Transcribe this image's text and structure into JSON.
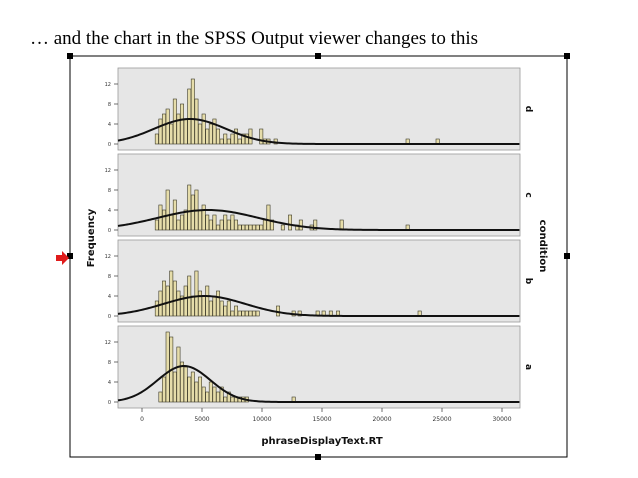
{
  "slide": {
    "caption": "… and the chart in the SPSS Output viewer changes to this"
  },
  "colors": {
    "panel_bg": "#e6e6e6",
    "bar_fill": "#e6ddaa",
    "bar_stroke": "#3d3a28",
    "curve": "#111111",
    "arrow": "#e01b1b",
    "handle": "#000000"
  },
  "chart_data": {
    "type": "bar",
    "subtype": "histogram-panel",
    "xlabel": "phraseDisplayText.RT",
    "ylabel": "Frequency",
    "panel_title": "condition",
    "x_ticks": [
      "0",
      "5000",
      "10000",
      "15000",
      "20000",
      "25000",
      "30000"
    ],
    "x_tick_values": [
      0,
      5000,
      10000,
      15000,
      20000,
      25000,
      30000
    ],
    "xlim": [
      -2000,
      31500
    ],
    "y_ticks": [
      0,
      4,
      8,
      12
    ],
    "ylim": [
      0,
      14
    ],
    "bin_width": 300,
    "panels": [
      {
        "label": "d",
        "normal_curve": {
          "mean": 4000,
          "sd": 3000,
          "peak": 5
        },
        "bins": [
          {
            "x": 1100,
            "y": 2
          },
          {
            "x": 1400,
            "y": 5
          },
          {
            "x": 1700,
            "y": 6
          },
          {
            "x": 2000,
            "y": 7
          },
          {
            "x": 2300,
            "y": 4
          },
          {
            "x": 2600,
            "y": 9
          },
          {
            "x": 2900,
            "y": 6
          },
          {
            "x": 3200,
            "y": 8
          },
          {
            "x": 3500,
            "y": 5
          },
          {
            "x": 3800,
            "y": 11
          },
          {
            "x": 4100,
            "y": 13
          },
          {
            "x": 4400,
            "y": 9
          },
          {
            "x": 4700,
            "y": 4
          },
          {
            "x": 5000,
            "y": 6
          },
          {
            "x": 5300,
            "y": 3
          },
          {
            "x": 5600,
            "y": 4
          },
          {
            "x": 5900,
            "y": 5
          },
          {
            "x": 6200,
            "y": 3
          },
          {
            "x": 6500,
            "y": 1
          },
          {
            "x": 6800,
            "y": 2
          },
          {
            "x": 7100,
            "y": 1
          },
          {
            "x": 7400,
            "y": 2
          },
          {
            "x": 7700,
            "y": 3
          },
          {
            "x": 8000,
            "y": 1
          },
          {
            "x": 8300,
            "y": 2
          },
          {
            "x": 8600,
            "y": 2
          },
          {
            "x": 8900,
            "y": 3
          },
          {
            "x": 9800,
            "y": 3
          },
          {
            "x": 10100,
            "y": 1
          },
          {
            "x": 10400,
            "y": 1
          },
          {
            "x": 11000,
            "y": 1
          },
          {
            "x": 22000,
            "y": 1
          },
          {
            "x": 24500,
            "y": 1
          }
        ]
      },
      {
        "label": "c",
        "normal_curve": {
          "mean": 5500,
          "sd": 4200,
          "peak": 4
        },
        "bins": [
          {
            "x": 1100,
            "y": 2
          },
          {
            "x": 1400,
            "y": 5
          },
          {
            "x": 1700,
            "y": 4
          },
          {
            "x": 2000,
            "y": 8
          },
          {
            "x": 2300,
            "y": 3
          },
          {
            "x": 2600,
            "y": 6
          },
          {
            "x": 2900,
            "y": 2
          },
          {
            "x": 3200,
            "y": 3
          },
          {
            "x": 3500,
            "y": 4
          },
          {
            "x": 3800,
            "y": 9
          },
          {
            "x": 4100,
            "y": 7
          },
          {
            "x": 4400,
            "y": 8
          },
          {
            "x": 4700,
            "y": 4
          },
          {
            "x": 5000,
            "y": 5
          },
          {
            "x": 5300,
            "y": 3
          },
          {
            "x": 5600,
            "y": 2
          },
          {
            "x": 5900,
            "y": 3
          },
          {
            "x": 6200,
            "y": 1
          },
          {
            "x": 6500,
            "y": 2
          },
          {
            "x": 6800,
            "y": 3
          },
          {
            "x": 7100,
            "y": 2
          },
          {
            "x": 7400,
            "y": 3
          },
          {
            "x": 7700,
            "y": 2
          },
          {
            "x": 8000,
            "y": 1
          },
          {
            "x": 8300,
            "y": 1
          },
          {
            "x": 8600,
            "y": 1
          },
          {
            "x": 8900,
            "y": 1
          },
          {
            "x": 9200,
            "y": 1
          },
          {
            "x": 9500,
            "y": 1
          },
          {
            "x": 9800,
            "y": 1
          },
          {
            "x": 10100,
            "y": 2
          },
          {
            "x": 10400,
            "y": 5
          },
          {
            "x": 10700,
            "y": 2
          },
          {
            "x": 11600,
            "y": 1
          },
          {
            "x": 12200,
            "y": 3
          },
          {
            "x": 12800,
            "y": 1
          },
          {
            "x": 13100,
            "y": 2
          },
          {
            "x": 14000,
            "y": 1
          },
          {
            "x": 14300,
            "y": 2
          },
          {
            "x": 16500,
            "y": 2
          },
          {
            "x": 22000,
            "y": 1
          }
        ]
      },
      {
        "label": "b",
        "normal_curve": {
          "mean": 5200,
          "sd": 3400,
          "peak": 4
        },
        "bins": [
          {
            "x": 1100,
            "y": 3
          },
          {
            "x": 1400,
            "y": 5
          },
          {
            "x": 1700,
            "y": 7
          },
          {
            "x": 2000,
            "y": 6
          },
          {
            "x": 2300,
            "y": 9
          },
          {
            "x": 2600,
            "y": 7
          },
          {
            "x": 2900,
            "y": 5
          },
          {
            "x": 3200,
            "y": 4
          },
          {
            "x": 3500,
            "y": 6
          },
          {
            "x": 3800,
            "y": 8
          },
          {
            "x": 4100,
            "y": 4
          },
          {
            "x": 4400,
            "y": 9
          },
          {
            "x": 4700,
            "y": 5
          },
          {
            "x": 5000,
            "y": 4
          },
          {
            "x": 5300,
            "y": 6
          },
          {
            "x": 5600,
            "y": 3
          },
          {
            "x": 5900,
            "y": 4
          },
          {
            "x": 6200,
            "y": 5
          },
          {
            "x": 6500,
            "y": 3
          },
          {
            "x": 6800,
            "y": 2
          },
          {
            "x": 7100,
            "y": 3
          },
          {
            "x": 7400,
            "y": 1
          },
          {
            "x": 7700,
            "y": 2
          },
          {
            "x": 8000,
            "y": 1
          },
          {
            "x": 8300,
            "y": 1
          },
          {
            "x": 8600,
            "y": 1
          },
          {
            "x": 8900,
            "y": 1
          },
          {
            "x": 9200,
            "y": 1
          },
          {
            "x": 9500,
            "y": 1
          },
          {
            "x": 11200,
            "y": 2
          },
          {
            "x": 12500,
            "y": 1
          },
          {
            "x": 13000,
            "y": 1
          },
          {
            "x": 14500,
            "y": 1
          },
          {
            "x": 15000,
            "y": 1
          },
          {
            "x": 15600,
            "y": 1
          },
          {
            "x": 16200,
            "y": 1
          },
          {
            "x": 23000,
            "y": 1
          }
        ]
      },
      {
        "label": "a",
        "normal_curve": {
          "mean": 3500,
          "sd": 2200,
          "peak": 7.2
        },
        "bins": [
          {
            "x": 1400,
            "y": 2
          },
          {
            "x": 1700,
            "y": 5
          },
          {
            "x": 2000,
            "y": 14
          },
          {
            "x": 2300,
            "y": 13
          },
          {
            "x": 2600,
            "y": 6
          },
          {
            "x": 2900,
            "y": 11
          },
          {
            "x": 3200,
            "y": 8
          },
          {
            "x": 3500,
            "y": 7
          },
          {
            "x": 3800,
            "y": 5
          },
          {
            "x": 4100,
            "y": 6
          },
          {
            "x": 4400,
            "y": 4
          },
          {
            "x": 4700,
            "y": 5
          },
          {
            "x": 5000,
            "y": 3
          },
          {
            "x": 5300,
            "y": 2
          },
          {
            "x": 5600,
            "y": 4
          },
          {
            "x": 5900,
            "y": 3
          },
          {
            "x": 6200,
            "y": 2
          },
          {
            "x": 6500,
            "y": 3
          },
          {
            "x": 6800,
            "y": 1
          },
          {
            "x": 7100,
            "y": 2
          },
          {
            "x": 7400,
            "y": 1
          },
          {
            "x": 7700,
            "y": 1
          },
          {
            "x": 8000,
            "y": 1
          },
          {
            "x": 8300,
            "y": 1
          },
          {
            "x": 8600,
            "y": 1
          },
          {
            "x": 12500,
            "y": 1
          }
        ]
      }
    ]
  }
}
